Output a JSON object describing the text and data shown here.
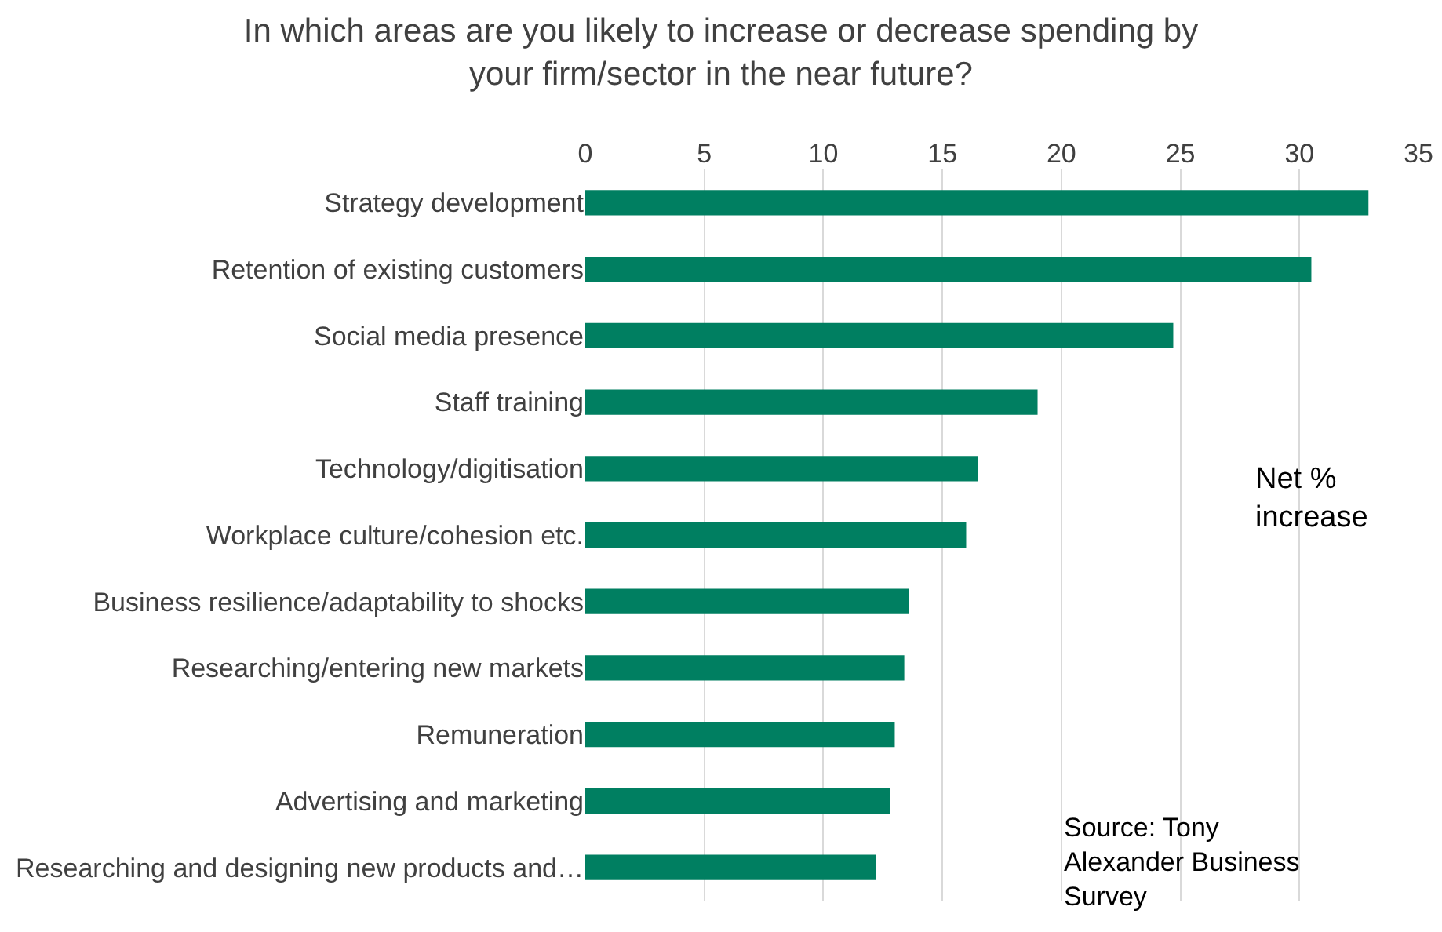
{
  "chart_data": {
    "type": "bar",
    "orientation": "horizontal",
    "title": "In which areas are you likely to increase or decrease spending by your firm/sector in the near future?",
    "categories": [
      "Strategy development",
      "Retention of existing customers",
      "Social media presence",
      "Staff training",
      "Technology/digitisation",
      "Workplace culture/cohesion etc.",
      "Business resilience/adaptability to shocks",
      "Researching/entering new markets",
      "Remuneration",
      "Advertising and marketing",
      "Researching and designing new products and…"
    ],
    "values": [
      32.9,
      30.5,
      24.7,
      19.0,
      16.5,
      16.0,
      13.6,
      13.4,
      13.0,
      12.8,
      12.2
    ],
    "color": "#007f61",
    "xlim": [
      0,
      35
    ],
    "xticks": [
      0,
      5,
      10,
      15,
      20,
      25,
      30,
      35
    ],
    "grid": "x",
    "annotations": [
      "Net % increase",
      "Source: Tony Alexander Business Survey"
    ]
  }
}
